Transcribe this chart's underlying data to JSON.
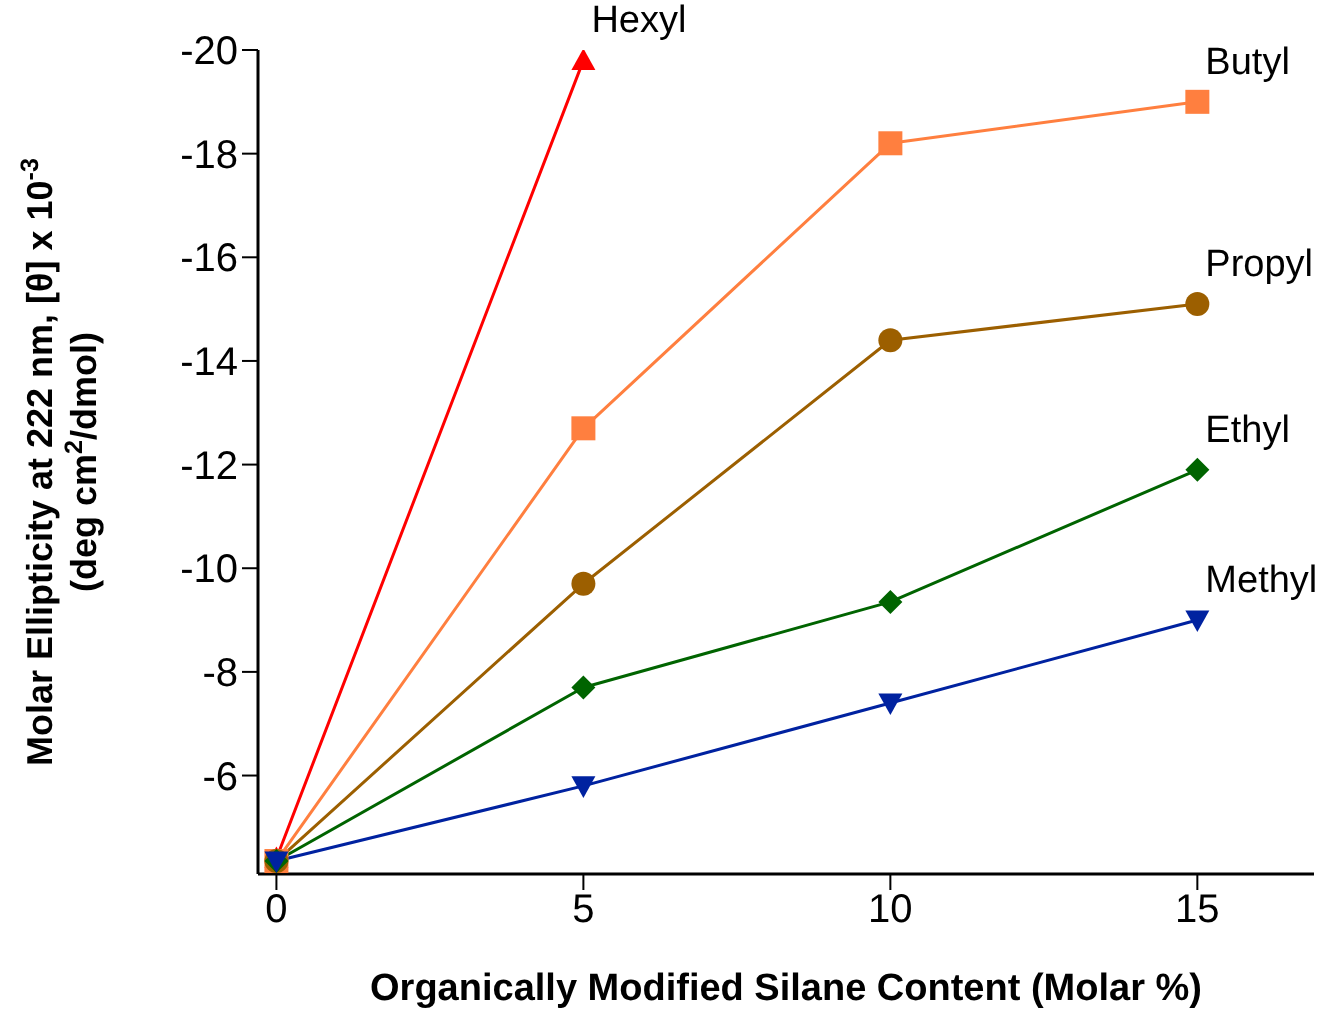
{
  "chart_data": {
    "type": "line",
    "xlabel": "Organically Modified Silane Content (Molar %)",
    "ylabel": "Molar Ellipticity at 222 nm, [θ] x 10$^{-3}$\n(deg cm$^{2}$/dmol)",
    "x": [
      0,
      5,
      10,
      15
    ],
    "series": [
      {
        "name": "Hexyl",
        "color": "#ff0000",
        "marker": "triangle",
        "values": [
          -4.4,
          -19.8,
          null,
          null
        ]
      },
      {
        "name": "Butyl",
        "color": "#ff7f3f",
        "marker": "square",
        "values": [
          -4.35,
          -12.7,
          -18.2,
          -19.0
        ]
      },
      {
        "name": "Propyl",
        "color": "#9c5f00",
        "marker": "circle",
        "values": [
          -4.35,
          -9.7,
          -14.4,
          -15.1
        ]
      },
      {
        "name": "Ethyl",
        "color": "#006400",
        "marker": "diamond",
        "values": [
          -4.35,
          -7.7,
          -9.35,
          -11.9
        ]
      },
      {
        "name": "Methyl",
        "color": "#0022a0",
        "marker": "triangle-down",
        "values": [
          -4.35,
          -5.8,
          -7.4,
          -9.0
        ]
      }
    ],
    "xlim": [
      -0.3,
      16.9
    ],
    "xticks": [
      0,
      5,
      10,
      15
    ],
    "ylim": [
      -4.1,
      -20
    ],
    "yticks": [
      -6,
      -8,
      -10,
      -12,
      -14,
      -16,
      -18,
      -20
    ],
    "grid": false,
    "line_style": "solid"
  }
}
